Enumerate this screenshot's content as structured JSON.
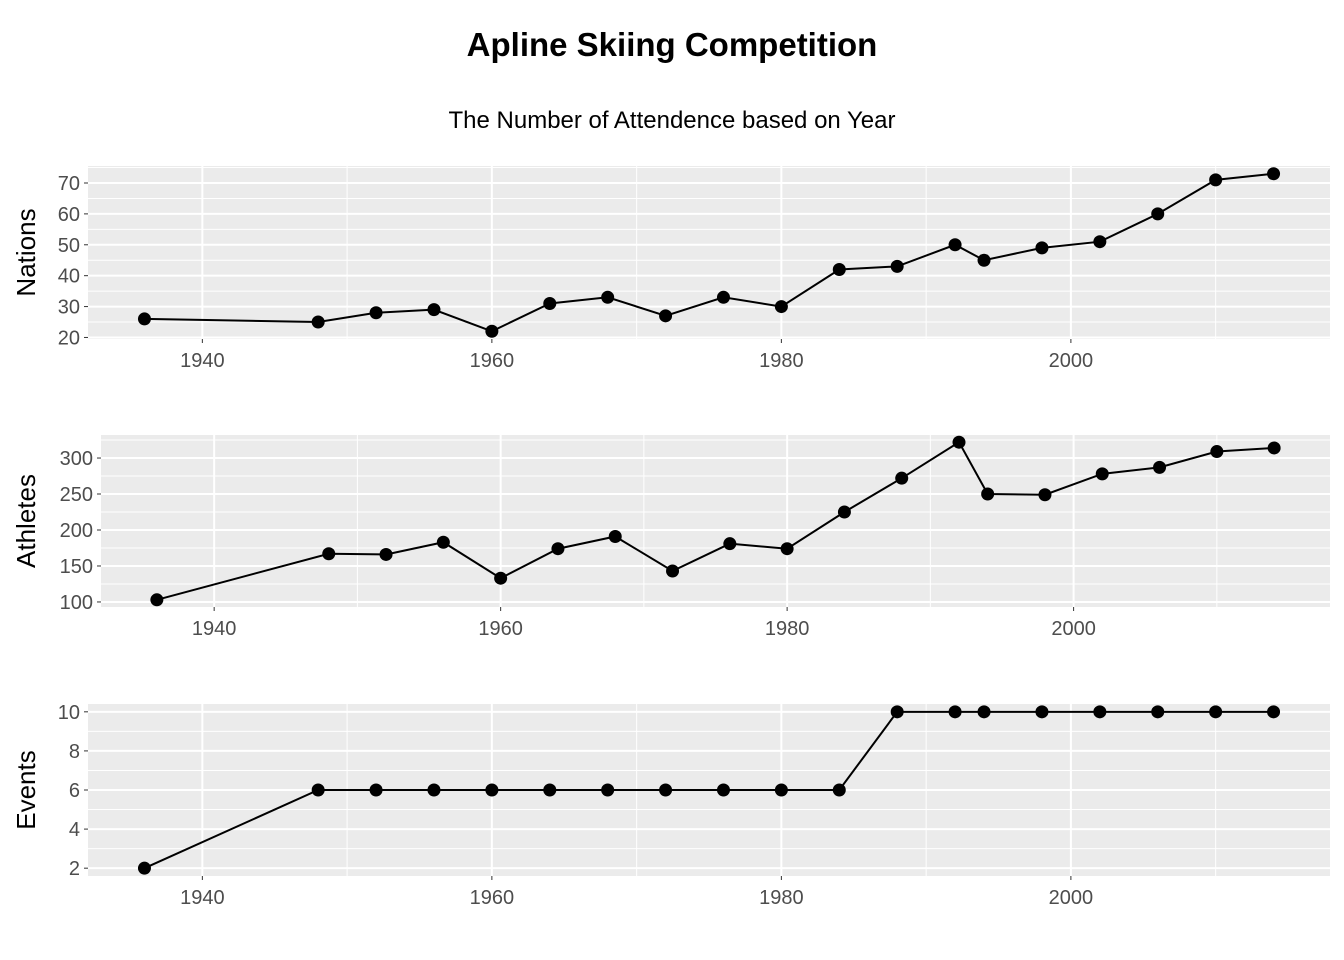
{
  "chart_data": {
    "type": "line",
    "title": "Apline Skiing Competition",
    "subtitle": "The Number of Attendence based on Year",
    "x": [
      1936,
      1948,
      1952,
      1956,
      1960,
      1964,
      1968,
      1972,
      1976,
      1980,
      1984,
      1988,
      1992,
      1994,
      1998,
      2002,
      2006,
      2010,
      2014
    ],
    "x_ticks": [
      1940,
      1960,
      1980,
      2000
    ],
    "grid": true,
    "panels": [
      {
        "ylabel": "Nations",
        "values": [
          26,
          25,
          28,
          29,
          22,
          31,
          33,
          27,
          33,
          30,
          42,
          43,
          50,
          45,
          49,
          51,
          60,
          71,
          73
        ],
        "y_ticks": [
          20,
          30,
          40,
          50,
          60,
          70
        ],
        "ylim": [
          19.5,
          75.5
        ]
      },
      {
        "ylabel": "Athletes",
        "values": [
          103,
          167,
          166,
          183,
          133,
          174,
          191,
          143,
          181,
          174,
          225,
          272,
          322,
          250,
          249,
          278,
          287,
          309,
          314
        ],
        "y_ticks": [
          100,
          150,
          200,
          250,
          300
        ],
        "ylim": [
          93,
          332
        ]
      },
      {
        "ylabel": "Events",
        "values": [
          2,
          6,
          6,
          6,
          6,
          6,
          6,
          6,
          6,
          6,
          6,
          10,
          10,
          10,
          10,
          10,
          10,
          10,
          10
        ],
        "y_ticks": [
          2,
          4,
          6,
          8,
          10
        ],
        "ylim": [
          1.6,
          10.4
        ]
      }
    ]
  }
}
